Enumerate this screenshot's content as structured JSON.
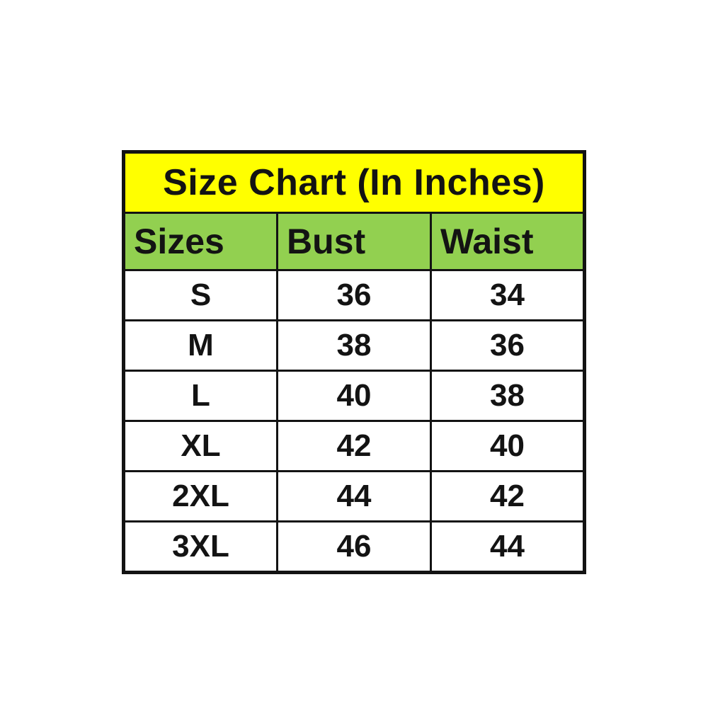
{
  "chart_data": {
    "type": "table",
    "title": "Size Chart (In Inches)",
    "columns": [
      "Sizes",
      "Bust",
      "Waist"
    ],
    "rows": [
      [
        "S",
        "36",
        "34"
      ],
      [
        "M",
        "38",
        "36"
      ],
      [
        "L",
        "40",
        "38"
      ],
      [
        "XL",
        "42",
        "40"
      ],
      [
        "2XL",
        "44",
        "42"
      ],
      [
        "3XL",
        "46",
        "44"
      ]
    ]
  },
  "colors": {
    "title_background": "#FFFF00",
    "header_background": "#92D050",
    "border": "#131313",
    "text": "#131313",
    "row_background": "#FFFFFF",
    "page_background": "#FFFFFF"
  }
}
